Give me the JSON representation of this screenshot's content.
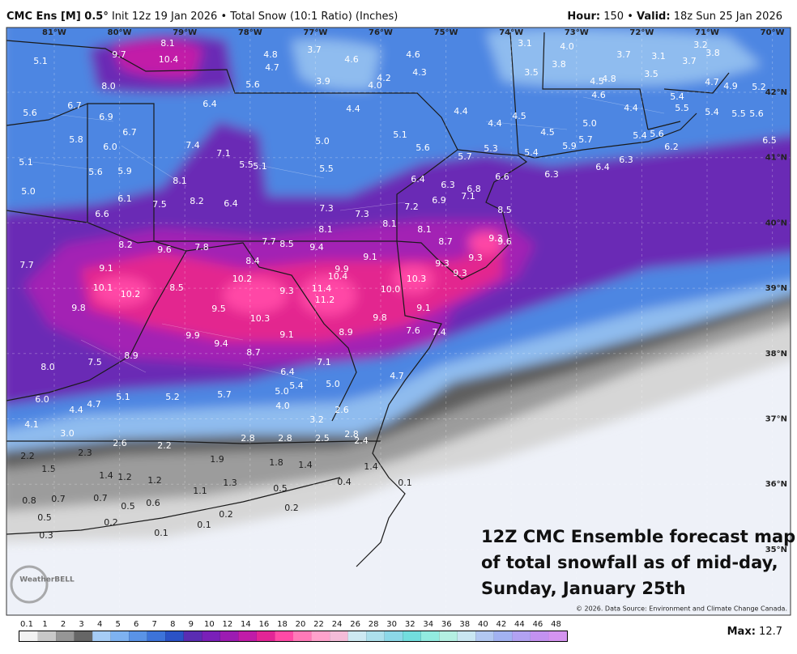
{
  "header": {
    "title": "CMC Ens [M] 0.5°",
    "subtitle": "Init 12z 19 Jan 2026 • Total Snow (10:1 Ratio) (Inches)",
    "hour_label": "Hour:",
    "hour_value": "150 •",
    "valid_label": "Valid:",
    "valid_value": "18z Sun 25 Jan 2026"
  },
  "map": {
    "lon_labels": [
      "81°W",
      "80°W",
      "79°W",
      "78°W",
      "77°W",
      "76°W",
      "75°W",
      "74°W",
      "73°W",
      "72°W",
      "71°W",
      "70°W"
    ],
    "lat_labels": [
      "42°N",
      "41°N",
      "40°N",
      "39°N",
      "38°N",
      "37°N",
      "36°N",
      "35°N"
    ],
    "snow_totals": [
      "8.1",
      "9.7",
      "10.4",
      "5.1",
      "4.8",
      "4.7",
      "3.7",
      "4.6",
      "4.6",
      "4.3",
      "3.1",
      "4.0",
      "3.8",
      "3.7",
      "3.1",
      "3.7",
      "3.2",
      "3.8",
      "3.5",
      "3.5",
      "4.5",
      "4.8",
      "4.7",
      "4.9",
      "5.2",
      "8.0",
      "5.6",
      "3.9",
      "4.0",
      "4.2",
      "4.6",
      "5.4",
      "6.7",
      "6.4",
      "4.4",
      "4.4",
      "4.5",
      "4.4",
      "5.5",
      "5.4",
      "5.5",
      "5.6",
      "5.6",
      "6.9",
      "4.4",
      "5.0",
      "5.1",
      "6.7",
      "5.0",
      "4.5",
      "5.4",
      "5.6",
      "5.7",
      "6.2",
      "6.5",
      "5.8",
      "7.4",
      "6.0",
      "5.9",
      "5.6",
      "5.3",
      "7.1",
      "5.7",
      "5.4",
      "5.1",
      "5.5",
      "5.1",
      "5.5",
      "6.4",
      "6.3",
      "5.6",
      "5.9",
      "8.1",
      "6.6",
      "6.3",
      "6.4",
      "5.0",
      "6.3",
      "6.8",
      "7.1",
      "6.1",
      "8.2",
      "6.4",
      "6.9",
      "7.5",
      "7.3",
      "7.2",
      "8.5",
      "6.6",
      "7.3",
      "8.1",
      "8.1",
      "8.1",
      "9.3",
      "9.6",
      "8.7",
      "8.2",
      "9.6",
      "7.8",
      "7.7",
      "8.5",
      "9.4",
      "9.1",
      "7.7",
      "8.4",
      "9.1",
      "9.3",
      "9.3",
      "9.9",
      "10.4",
      "10.2",
      "10.3",
      "9.3",
      "10.1",
      "10.2",
      "8.5",
      "9.3",
      "11.4",
      "10.0",
      "11.2",
      "9.8",
      "9.5",
      "10.3",
      "9.1",
      "9.8",
      "9.9",
      "9.4",
      "9.1",
      "8.9",
      "7.6",
      "7.4",
      "8.7",
      "8.9",
      "7.5",
      "8.0",
      "7.1",
      "6.4",
      "4.7",
      "5.4",
      "5.0",
      "5.0",
      "6.0",
      "5.1",
      "5.2",
      "5.7",
      "4.7",
      "4.4",
      "4.0",
      "2.6",
      "3.2",
      "4.1",
      "3.0",
      "2.8",
      "2.8",
      "2.5",
      "2.8",
      "2.4",
      "2.6",
      "2.2",
      "2.3",
      "2.2",
      "1.9",
      "1.8",
      "1.4",
      "1.4",
      "1.5",
      "1.4",
      "1.2",
      "1.2",
      "1.3",
      "0.4",
      "0.1",
      "0.5",
      "1.1",
      "0.8",
      "0.7",
      "0.7",
      "0.5",
      "0.6",
      "0.2",
      "0.2",
      "0.5",
      "0.2",
      "0.1",
      "0.3",
      "0.1"
    ],
    "overlay_lines": [
      "12Z CMC Ensemble forecast map",
      "of total snowfall as of mid-day,",
      "Sunday, January 25th"
    ],
    "copyright": "© 2026. Data Source: Environment and Climate Change Canada.",
    "logo": "WeatherBELL"
  },
  "colorbar": {
    "labels": [
      0.1,
      1,
      2,
      3,
      4,
      5,
      6,
      7,
      8,
      9,
      10,
      12,
      14,
      16,
      18,
      20,
      22,
      24,
      26,
      28,
      30,
      32,
      34,
      36,
      38,
      40,
      42,
      44,
      46,
      48
    ],
    "colors": [
      "#f2f2f2",
      "#c8c8c8",
      "#969696",
      "#666666",
      "#a6ccf5",
      "#7eb2f0",
      "#5a93e6",
      "#3d73d9",
      "#2b52c6",
      "#5a2db2",
      "#7a20b8",
      "#9c1cb2",
      "#c01ca8",
      "#e22596",
      "#ff4aa6",
      "#ff7ab8",
      "#ffa2cc",
      "#f4bcd8",
      "#cde9f2",
      "#ade0ec",
      "#8cd8e8",
      "#72dede",
      "#92ebe0",
      "#b4f0e2",
      "#c9e6f2",
      "#b2c8f2",
      "#a2b2f2",
      "#b2a2f2",
      "#c392f0",
      "#d494f0"
    ],
    "max_label": "Max:",
    "max_value": 12.7
  }
}
